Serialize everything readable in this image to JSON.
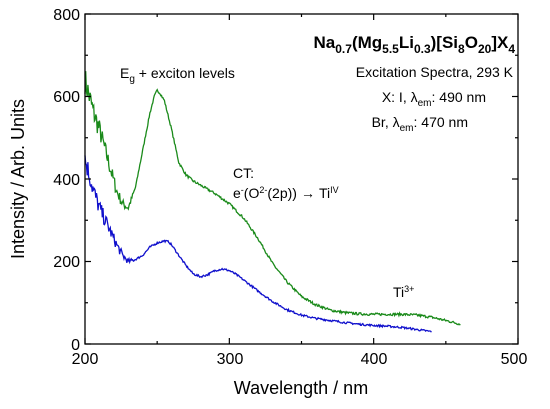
{
  "chart_data": {
    "type": "line",
    "xlabel": "Wavelength / nm",
    "ylabel": "Intensity / Arb. Units",
    "xlim": [
      200,
      500
    ],
    "ylim": [
      0,
      800
    ],
    "x_ticks": [
      "200",
      "300",
      "400",
      "500"
    ],
    "y_ticks": [
      "0",
      "200",
      "400",
      "600",
      "800"
    ],
    "grid": false,
    "title": {
      "t1": "Na",
      "t2": "0.7",
      "t3": "(Mg",
      "t4": "5.5",
      "t5": "Li",
      "t6": "0.3",
      "t7": ")[Si",
      "t8": "8",
      "t9": "O",
      "t10": "20",
      "t11": "]X",
      "t12": "4"
    },
    "subtitle": "Excitation Spectra, 293 K",
    "legend": {
      "placement": "top-right",
      "entry1": {
        "a": "X: I, λ",
        "sub": "em",
        "b": ": 490 nm",
        "color": "#1a8a1a"
      },
      "entry2": {
        "a": "Br, λ",
        "sub": "em",
        "b": ": 470 nm",
        "color": "#1010cc"
      }
    },
    "annotations": {
      "eg_a": "E",
      "eg_sub": "g",
      "eg_b": " + exciton levels",
      "ct_title": "CT:",
      "ct_e": "e",
      "ct_esup": "-",
      "ct_o": "(O",
      "ct_osup": "2-",
      "ct_2p": "(2p))",
      "ct_arrow": "→",
      "ct_ti": "Ti",
      "ct_tisup": "IV",
      "ti3_a": "Ti",
      "ti3_sup": "3+"
    },
    "series": [
      {
        "name": "X: I, λem: 490 nm",
        "color": "#1a8a1a",
        "x": [
          200,
          203,
          206,
          210,
          214,
          218,
          222,
          226,
          230,
          235,
          240,
          245,
          248,
          250,
          252,
          255,
          260,
          265,
          270,
          275,
          280,
          290,
          300,
          310,
          320,
          330,
          340,
          350,
          360,
          370,
          380,
          390,
          400,
          410,
          420,
          430,
          440,
          450,
          460
        ],
        "y": [
          640,
          600,
          560,
          520,
          470,
          420,
          370,
          340,
          330,
          380,
          470,
          560,
          600,
          615,
          608,
          590,
          520,
          440,
          410,
          395,
          385,
          365,
          340,
          305,
          255,
          195,
          150,
          115,
          95,
          82,
          76,
          73,
          72,
          72,
          72,
          70,
          65,
          57,
          48
        ]
      },
      {
        "name": "Br, λem: 470 nm",
        "color": "#1010cc",
        "x": [
          200,
          203,
          206,
          210,
          214,
          218,
          222,
          226,
          230,
          235,
          240,
          245,
          250,
          255,
          258,
          260,
          265,
          270,
          275,
          280,
          285,
          290,
          295,
          300,
          305,
          310,
          320,
          330,
          340,
          350,
          360,
          370,
          380,
          390,
          400,
          410,
          420,
          430,
          440
        ],
        "y": [
          450,
          410,
          370,
          330,
          300,
          270,
          240,
          215,
          200,
          205,
          215,
          235,
          245,
          250,
          248,
          240,
          215,
          190,
          170,
          163,
          168,
          178,
          182,
          178,
          168,
          155,
          128,
          103,
          83,
          70,
          62,
          57,
          52,
          48,
          45,
          43,
          40,
          35,
          30
        ]
      }
    ]
  }
}
